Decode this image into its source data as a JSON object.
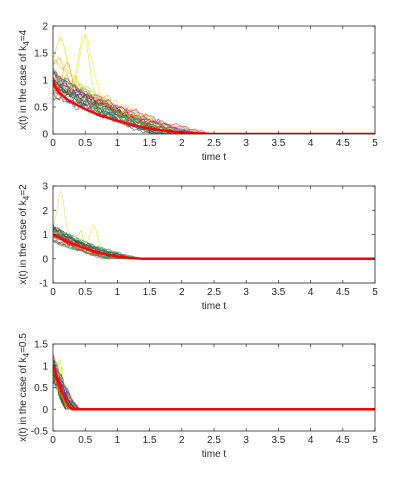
{
  "chart_data": [
    {
      "type": "line",
      "ylabel": "x(t) in the case of k_4=4",
      "ylabel_main": "x(t) in the case of k",
      "ylabel_sub": "4",
      "ylabel_tail": "=4",
      "xlabel": "time t",
      "xlim": [
        0,
        5
      ],
      "ylim": [
        0,
        2
      ],
      "xticks": [
        "0",
        "0.5",
        "1",
        "1.5",
        "2",
        "2.5",
        "3",
        "3.5",
        "4",
        "4.5",
        "5"
      ],
      "yticks": [
        "0",
        "0.5",
        "1",
        "1.5",
        "2"
      ],
      "mean_path": {
        "color": "#ff0000",
        "x": [
          0,
          0.05,
          0.1,
          0.2,
          0.3,
          0.5,
          0.7,
          1.0,
          1.3,
          1.6,
          1.9,
          2.2,
          2.5,
          5
        ],
        "y": [
          1.0,
          0.85,
          0.76,
          0.66,
          0.58,
          0.46,
          0.36,
          0.24,
          0.15,
          0.08,
          0.04,
          0.015,
          0,
          0
        ]
      },
      "sample_paths": {
        "count": 30,
        "hit_zero_range": [
          1.6,
          2.6
        ],
        "peak_values": [
          1.75,
          1.6,
          1.35,
          1.1,
          1.0
        ]
      }
    },
    {
      "type": "line",
      "ylabel": "x(t) in the case of k_4=2",
      "ylabel_main": "x(t) in the case of k",
      "ylabel_sub": "4",
      "ylabel_tail": "=2",
      "xlabel": "time t",
      "xlim": [
        0,
        5
      ],
      "ylim": [
        -1,
        3
      ],
      "xticks": [
        "0",
        "0.5",
        "1",
        "1.5",
        "2",
        "2.5",
        "3",
        "3.5",
        "4",
        "4.5",
        "5"
      ],
      "yticks": [
        "-1",
        "0",
        "1",
        "2",
        "3"
      ],
      "mean_path": {
        "color": "#ff0000",
        "x": [
          0,
          0.1,
          0.2,
          0.4,
          0.6,
          0.8,
          1.0,
          1.2,
          1.4,
          5
        ],
        "y": [
          1.0,
          0.85,
          0.72,
          0.52,
          0.34,
          0.2,
          0.1,
          0.03,
          0,
          0
        ]
      },
      "sample_paths": {
        "count": 30,
        "hit_zero_range": [
          0.8,
          1.5
        ],
        "peak_values": [
          2.45,
          1.6,
          1.4
        ]
      }
    },
    {
      "type": "line",
      "ylabel": "x(t) in the case of k_4=0.5",
      "ylabel_main": "x(t) in the case of k",
      "ylabel_sub": "4",
      "ylabel_tail": "=0.5",
      "xlabel": "time t",
      "xlim": [
        0,
        5
      ],
      "ylim": [
        -0.5,
        1.5
      ],
      "xticks": [
        "0",
        "0.5",
        "1",
        "1.5",
        "2",
        "2.5",
        "3",
        "3.5",
        "4",
        "4.5",
        "5"
      ],
      "yticks": [
        "-0.5",
        "0",
        "0.5",
        "1",
        "1.5"
      ],
      "mean_path": {
        "color": "#ff0000",
        "x": [
          0,
          0.05,
          0.1,
          0.15,
          0.2,
          0.25,
          0.3,
          5
        ],
        "y": [
          1.0,
          0.78,
          0.57,
          0.37,
          0.19,
          0.06,
          0,
          0
        ]
      },
      "sample_paths": {
        "count": 30,
        "hit_zero_range": [
          0.2,
          0.45
        ],
        "peak_values": [
          1.2,
          1.05
        ]
      }
    }
  ],
  "palette": [
    "#d4e157",
    "#e6ee26",
    "#c5e100",
    "#ff9800",
    "#f9a825",
    "#1e3a8a",
    "#2e7d32",
    "#6a1b9a",
    "#b71c1c",
    "#00897b",
    "#37474f",
    "#8bc34a",
    "#ef6c00",
    "#5c6bc0",
    "#ad1457",
    "#fbc02d",
    "#4e342e",
    "#26a69a",
    "#7cb342",
    "#c0ca33",
    "#424242",
    "#e91e63",
    "#3949ab",
    "#009688",
    "#f57f17",
    "#9c27b0",
    "#00bcd4",
    "#827717",
    "#d84315",
    "#1b5e20"
  ]
}
